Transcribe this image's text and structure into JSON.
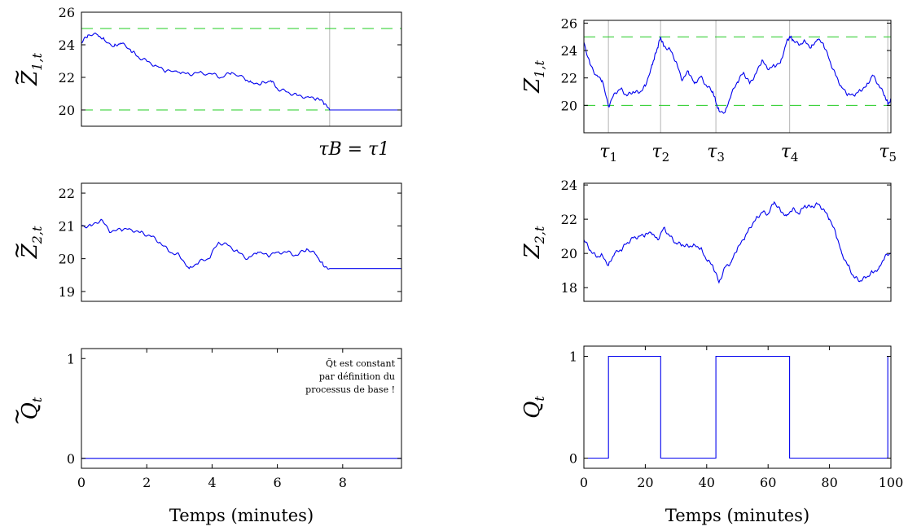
{
  "chart_data": [
    {
      "id": "z1_tilde",
      "type": "line",
      "ylabel_main": "Z",
      "ylabel_accent": "~",
      "ylabel_sub": "1,t",
      "xlim": [
        0,
        9.8
      ],
      "ylim": [
        19,
        26
      ],
      "yticks": [
        20,
        22,
        24,
        26
      ],
      "xticks": [],
      "thresholds": [
        20,
        25
      ],
      "vlines": [
        7.6
      ],
      "vline_label": "τB = τ1",
      "series": [
        {
          "x": [
            0,
            0.2,
            0.5,
            0.7,
            1.0,
            1.2,
            1.5,
            1.7,
            2.0,
            2.3,
            2.6,
            3.0,
            3.3,
            3.6,
            4.0,
            4.3,
            4.6,
            5.0,
            5.2,
            5.5,
            5.8,
            6.0,
            6.3,
            6.6,
            6.9,
            7.2,
            7.4,
            7.6,
            9.8
          ],
          "y": [
            24.1,
            24.6,
            24.6,
            24.3,
            23.9,
            24.1,
            23.7,
            23.3,
            23.0,
            22.7,
            22.4,
            22.3,
            22.2,
            22.3,
            22.2,
            22.0,
            22.3,
            21.9,
            21.7,
            21.6,
            21.8,
            21.3,
            21.1,
            20.9,
            20.8,
            20.7,
            20.5,
            20.0,
            20.0
          ]
        }
      ]
    },
    {
      "id": "z2_tilde",
      "type": "line",
      "ylabel_main": "Z",
      "ylabel_accent": "~",
      "ylabel_sub": "2,t",
      "xlim": [
        0,
        9.8
      ],
      "ylim": [
        18.7,
        22.3
      ],
      "yticks": [
        19,
        20,
        21,
        22
      ],
      "xticks": [],
      "series": [
        {
          "x": [
            0,
            0.3,
            0.6,
            0.9,
            1.2,
            1.5,
            1.8,
            2.1,
            2.4,
            2.7,
            3.0,
            3.3,
            3.6,
            3.9,
            4.2,
            4.5,
            4.8,
            5.1,
            5.4,
            5.7,
            6.0,
            6.3,
            6.6,
            6.9,
            7.2,
            7.4,
            7.6,
            9.8
          ],
          "y": [
            21.0,
            21.0,
            21.2,
            20.8,
            20.9,
            20.9,
            20.8,
            20.7,
            20.5,
            20.2,
            20.1,
            19.7,
            19.9,
            20.0,
            20.5,
            20.4,
            20.2,
            20.0,
            20.2,
            20.1,
            20.2,
            20.2,
            20.1,
            20.3,
            20.1,
            19.8,
            19.7,
            19.7
          ]
        }
      ]
    },
    {
      "id": "q_tilde",
      "type": "line",
      "ylabel_main": "Q",
      "ylabel_accent": "~",
      "ylabel_sub": "t",
      "xlim": [
        0,
        9.8
      ],
      "ylim": [
        -0.1,
        1.1
      ],
      "yticks": [
        0,
        1
      ],
      "xticks": [
        0,
        2,
        4,
        6,
        8
      ],
      "xlabel": "Temps (minutes)",
      "note_lines": [
        "Q̃t  est  constant",
        "par  définition  du",
        "processus de base !"
      ],
      "series": [
        {
          "x": [
            0,
            9.8
          ],
          "y": [
            0,
            0
          ]
        }
      ]
    },
    {
      "id": "z1",
      "type": "line",
      "ylabel_main": "Z",
      "ylabel_accent": "",
      "ylabel_sub": "1,t",
      "xlim": [
        0,
        100
      ],
      "ylim": [
        18,
        26.2
      ],
      "yticks": [
        20,
        22,
        24,
        26
      ],
      "xticks": [],
      "thresholds": [
        20,
        25
      ],
      "vlines": [
        8,
        25,
        43,
        67,
        99
      ],
      "vline_labels": [
        "τ1",
        "τ2",
        "τ3",
        "τ4",
        "τ5"
      ],
      "series": [
        {
          "x": [
            0,
            2,
            4,
            6,
            8,
            10,
            12,
            14,
            16,
            18,
            20,
            22,
            23,
            24,
            25,
            26,
            28,
            30,
            32,
            34,
            36,
            38,
            40,
            42,
            43,
            44,
            46,
            48,
            50,
            52,
            54,
            56,
            58,
            60,
            62,
            64,
            66,
            67,
            68,
            70,
            72,
            74,
            76,
            78,
            80,
            82,
            84,
            86,
            88,
            90,
            92,
            94,
            96,
            98,
            99,
            100
          ],
          "y": [
            24.6,
            23.0,
            22.2,
            21.8,
            19.9,
            20.9,
            21.2,
            20.7,
            21.0,
            20.9,
            21.4,
            22.8,
            23.5,
            24.2,
            25.0,
            24.3,
            24.1,
            23.2,
            21.8,
            22.5,
            21.6,
            22.1,
            21.4,
            21.0,
            20.2,
            19.6,
            19.5,
            20.8,
            21.7,
            22.4,
            21.6,
            22.3,
            23.3,
            22.6,
            22.9,
            23.1,
            24.6,
            25.0,
            24.8,
            24.4,
            24.7,
            24.2,
            24.8,
            24.5,
            23.3,
            22.2,
            21.3,
            20.8,
            20.7,
            21.1,
            21.4,
            22.2,
            21.5,
            20.7,
            20.1,
            20.4
          ]
        }
      ]
    },
    {
      "id": "z2",
      "type": "line",
      "ylabel_main": "Z",
      "ylabel_accent": "",
      "ylabel_sub": "2,t",
      "xlim": [
        0,
        100
      ],
      "ylim": [
        17.2,
        24.1
      ],
      "yticks": [
        18,
        20,
        22,
        24
      ],
      "xticks": [],
      "series": [
        {
          "x": [
            0,
            2,
            4,
            6,
            8,
            10,
            12,
            14,
            16,
            18,
            20,
            22,
            24,
            26,
            28,
            30,
            32,
            34,
            36,
            38,
            40,
            42,
            44,
            46,
            48,
            50,
            52,
            54,
            56,
            58,
            60,
            62,
            64,
            66,
            68,
            70,
            72,
            74,
            76,
            78,
            80,
            82,
            84,
            86,
            88,
            90,
            92,
            94,
            96,
            98,
            100
          ],
          "y": [
            20.8,
            20.2,
            19.8,
            19.9,
            19.3,
            20.0,
            20.2,
            20.6,
            20.9,
            21.0,
            21.1,
            21.2,
            20.8,
            21.5,
            21.0,
            20.6,
            20.5,
            20.4,
            20.5,
            20.3,
            19.6,
            19.3,
            18.3,
            19.2,
            19.5,
            20.3,
            20.8,
            21.5,
            22.0,
            22.4,
            22.3,
            23.0,
            22.5,
            22.2,
            22.6,
            22.3,
            22.8,
            22.7,
            22.9,
            22.6,
            22.0,
            21.2,
            20.0,
            19.3,
            18.6,
            18.4,
            18.6,
            18.9,
            19.1,
            19.8,
            20.0
          ]
        }
      ]
    },
    {
      "id": "q",
      "type": "line",
      "ylabel_main": "Q",
      "ylabel_accent": "",
      "ylabel_sub": "t",
      "xlim": [
        0,
        100
      ],
      "ylim": [
        -0.1,
        1.1
      ],
      "yticks": [
        0,
        1
      ],
      "xticks": [
        0,
        20,
        40,
        60,
        80,
        100
      ],
      "xlabel": "Temps (minutes)",
      "series": [
        {
          "x": [
            0,
            8,
            8,
            25,
            25,
            43,
            43,
            67,
            67,
            99,
            99,
            100
          ],
          "y": [
            0,
            0,
            1,
            1,
            0,
            0,
            1,
            1,
            0,
            0,
            1,
            1
          ]
        }
      ]
    }
  ]
}
